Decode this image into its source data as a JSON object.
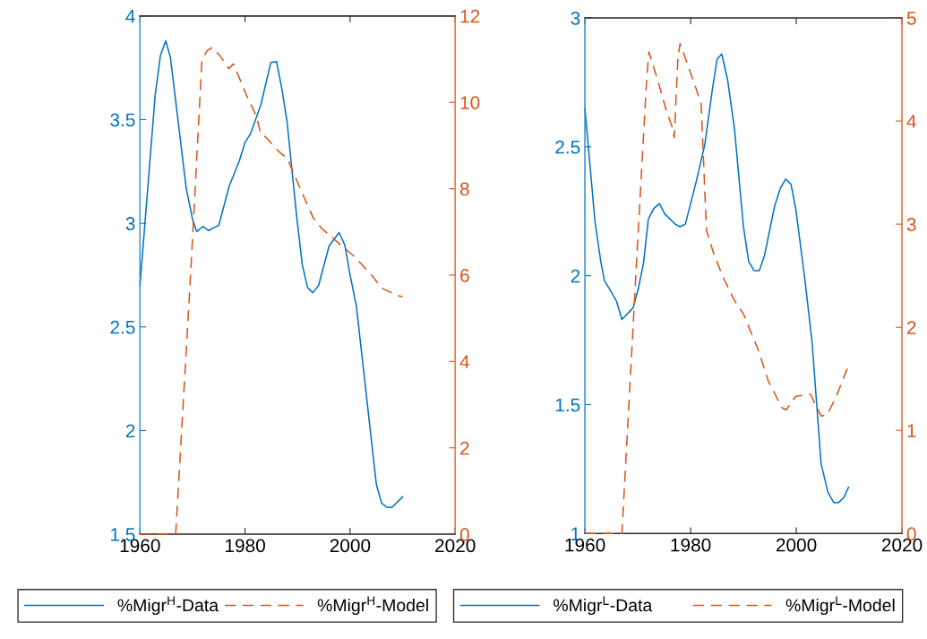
{
  "chart_data": [
    {
      "type": "line",
      "xlim": [
        1960,
        2020
      ],
      "xticks": [
        1960,
        1980,
        2000,
        2020
      ],
      "ylim": [
        1.5,
        4
      ],
      "yticks": [
        1.5,
        2,
        2.5,
        3,
        3.5,
        4
      ],
      "y2lim": [
        0,
        12
      ],
      "y2ticks": [
        0,
        2,
        4,
        6,
        8,
        10,
        12
      ],
      "legend": "bottom",
      "grid": false,
      "series": [
        {
          "name": "%Migr$^{H}$-Data",
          "color": "#0072bd",
          "line_style": "solid",
          "x": [
            1960,
            1962.9,
            1963.9,
            1964.9,
            1965.8,
            1968.8,
            1970,
            1970.8,
            1972,
            1973,
            1975,
            1977,
            1978.9,
            1980,
            1981,
            1983,
            1984.9,
            1986,
            1987,
            1988,
            1989.8,
            1990.9,
            1991.9,
            1992.9,
            1994,
            1996,
            1997.9,
            1999,
            2000,
            2001.2,
            2003.1,
            2005,
            2006,
            2007,
            2008,
            2010
          ],
          "values": [
            2.7,
            3.62,
            3.81,
            3.88,
            3.8,
            3.17,
            3.02,
            2.96,
            2.985,
            2.965,
            2.99,
            3.18,
            3.3,
            3.39,
            3.43,
            3.57,
            3.775,
            3.78,
            3.65,
            3.49,
            3.04,
            2.8,
            2.69,
            2.665,
            2.7,
            2.89,
            2.955,
            2.895,
            2.75,
            2.6,
            2.17,
            1.74,
            1.65,
            1.63,
            1.63,
            1.68
          ]
        },
        {
          "name": "%Migr$^{H}$-Model",
          "color": "#d95319",
          "line_style": "dashed",
          "axis": "y2",
          "x": [
            1960,
            1966.8,
            1969.7,
            1971.8,
            1972.8,
            1973.8,
            1975.1,
            1976.9,
            1977.8,
            1980.3,
            1982.2,
            1983,
            1983.9,
            1986.7,
            1988,
            1990.7,
            1993,
            1994.6,
            1998.6,
            2000.9,
            2004.3,
            2006,
            2009.1,
            2010
          ],
          "values": [
            0,
            0,
            6.15,
            10.99,
            11.2,
            11.27,
            11.1,
            10.78,
            10.89,
            10.16,
            9.67,
            9.26,
            9.2,
            8.83,
            8.71,
            7.95,
            7.32,
            7.08,
            6.66,
            6.42,
            5.97,
            5.7,
            5.52,
            5.5
          ]
        }
      ]
    },
    {
      "type": "line",
      "xlim": [
        1960,
        2020
      ],
      "xticks": [
        1960,
        1980,
        2000,
        2020
      ],
      "ylim": [
        1,
        3
      ],
      "yticks": [
        1,
        1.5,
        2,
        2.5,
        3
      ],
      "y2lim": [
        0,
        5
      ],
      "y2ticks": [
        0,
        1,
        2,
        3,
        4,
        5
      ],
      "legend": "bottom",
      "grid": false,
      "series": [
        {
          "name": "%Migr$^{L}$-Data",
          "color": "#0072bd",
          "line_style": "solid",
          "x": [
            1960,
            1961.9,
            1963,
            1963.7,
            1964.9,
            1966,
            1967,
            1969.1,
            1970.1,
            1971.1,
            1972,
            1973,
            1974.1,
            1975.1,
            1977.1,
            1978,
            1979,
            1981,
            1982.7,
            1984.1,
            1985,
            1985.9,
            1987,
            1988.3,
            1990,
            1991,
            1992,
            1993,
            1994,
            1995.9,
            1997,
            1998,
            1999,
            1999.9,
            2001.6,
            2003,
            2004.7,
            2006,
            2007.1,
            2008,
            2009,
            2009.9
          ],
          "values": [
            2.65,
            2.21,
            2.055,
            1.98,
            1.94,
            1.9,
            1.83,
            1.875,
            1.95,
            2.05,
            2.22,
            2.26,
            2.28,
            2.24,
            2.2,
            2.19,
            2.2,
            2.36,
            2.51,
            2.72,
            2.84,
            2.86,
            2.76,
            2.57,
            2.19,
            2.055,
            2.02,
            2.02,
            2.08,
            2.27,
            2.34,
            2.375,
            2.355,
            2.26,
            1.99,
            1.74,
            1.27,
            1.16,
            1.12,
            1.12,
            1.14,
            1.18
          ]
        },
        {
          "name": "%Migr$^{L}$-Model",
          "color": "#d95319",
          "line_style": "dashed",
          "axis": "y2",
          "x": [
            1960,
            1967,
            1969.1,
            1969.7,
            1971.7,
            1972.1,
            1973.7,
            1975.4,
            1976.4,
            1976.9,
            1977.6,
            1978,
            1979.2,
            1981,
            1982,
            1983,
            1984.4,
            1986.1,
            1988.3,
            1990,
            1992.8,
            1994.7,
            1997.3,
            1998.1,
            1999.9,
            2002.7,
            2004.7,
            2005.8,
            2007.5,
            2009.8
          ],
          "values": [
            0,
            0,
            1.99,
            2.57,
            4.42,
            4.67,
            4.41,
            4.1,
            3.96,
            3.84,
            4.61,
            4.75,
            4.58,
            4.32,
            4.16,
            2.94,
            2.71,
            2.49,
            2.26,
            2.13,
            1.78,
            1.48,
            1.22,
            1.2,
            1.33,
            1.35,
            1.14,
            1.15,
            1.32,
            1.62
          ]
        }
      ]
    }
  ]
}
